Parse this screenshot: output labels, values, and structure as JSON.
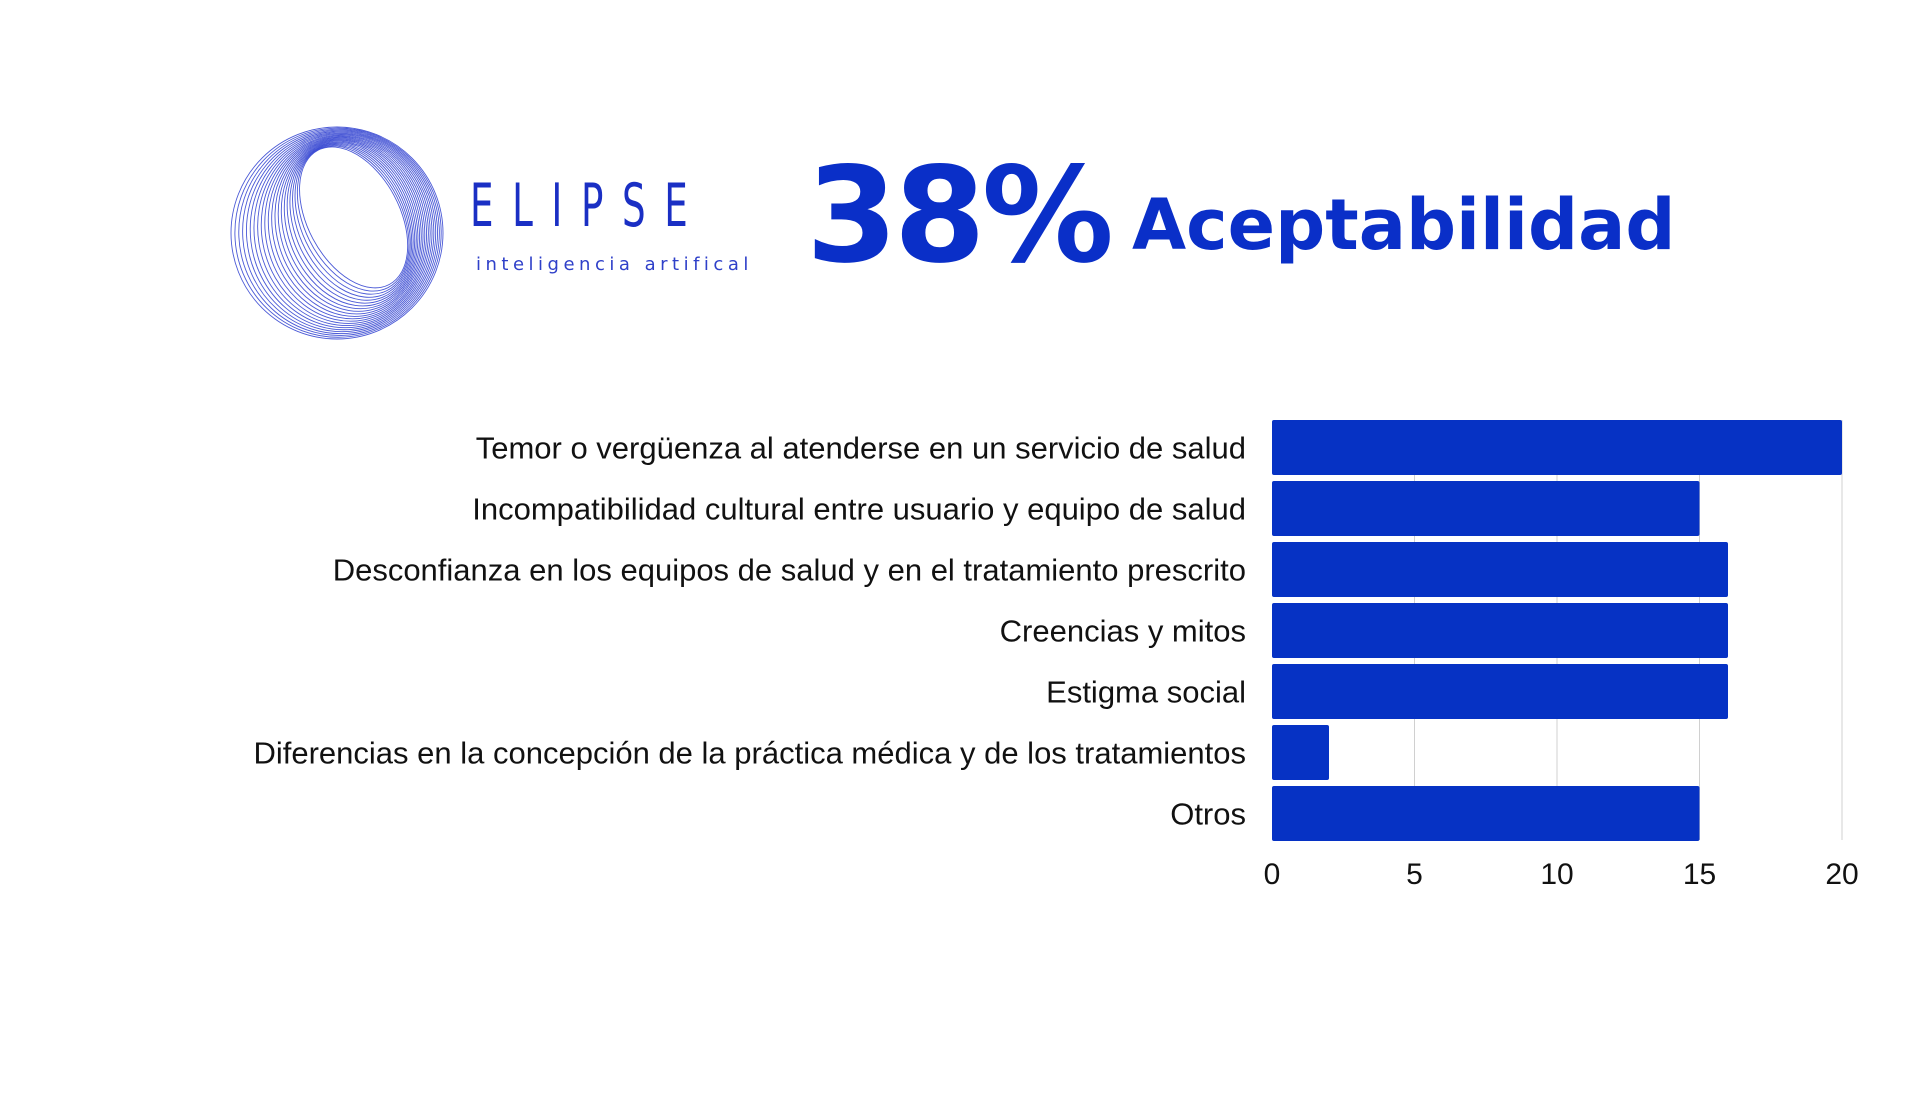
{
  "brand": {
    "name": "ELIPSE",
    "tagline": "inteligencia artifical"
  },
  "header": {
    "percent": "38%",
    "title": "Aceptabilidad"
  },
  "colors": {
    "accent": "#0a2fc8",
    "bar": "#0632c4",
    "grid": "#d0d0d0"
  },
  "chart_data": {
    "type": "bar",
    "orientation": "horizontal",
    "categories": [
      "Temor o vergüenza al atenderse en un servicio de salud ",
      "Incompatibilidad cultural entre usuario y equipo de salud",
      "Desconfianza en los equipos de salud y en el tratamiento prescrito",
      "Creencias y mitos",
      "Estigma social",
      "Diferencias en la concepción de la práctica médica y de los tratamientos",
      "Otros"
    ],
    "values": [
      20,
      15,
      16,
      16,
      16,
      2,
      15
    ],
    "xlim": [
      0,
      20
    ],
    "xticks": [
      "0",
      "5",
      "10",
      "15",
      "20"
    ],
    "grid": "vertical",
    "title": "",
    "xlabel": "",
    "ylabel": ""
  }
}
